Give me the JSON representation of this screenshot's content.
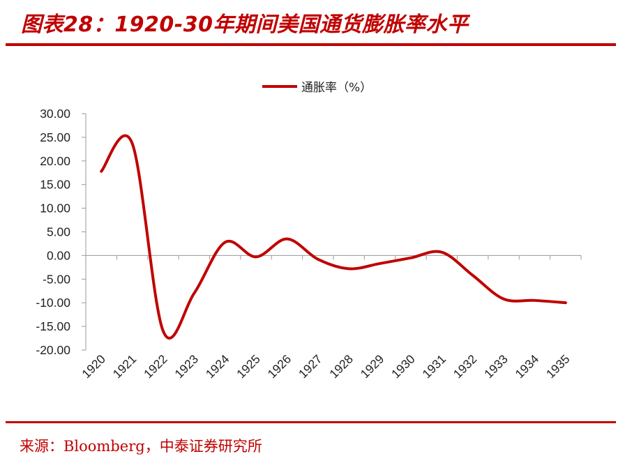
{
  "header": {
    "title": "图表28：1920-30年期间美国通货膨胀率水平"
  },
  "source": {
    "label": "来源：",
    "text": "Bloomberg，中泰证券研究所"
  },
  "colors": {
    "accent": "#c00000",
    "series": "#c00000",
    "axis": "#9a9a9a"
  },
  "chart_data": {
    "type": "line",
    "title": "",
    "xlabel": "",
    "ylabel": "",
    "ylim": [
      -20,
      30
    ],
    "y_ticks": [
      30,
      25,
      20,
      15,
      10,
      5,
      0,
      -5,
      -10,
      -15,
      -20
    ],
    "y_tick_labels": [
      "30.00",
      "25.00",
      "20.00",
      "15.00",
      "10.00",
      "5.00",
      "0.00",
      "-5.00",
      "-10.00",
      "-15.00",
      "-20.00"
    ],
    "categories": [
      "1920",
      "1921",
      "1922",
      "1923",
      "1924",
      "1925",
      "1926",
      "1927",
      "1928",
      "1929",
      "1930",
      "1931",
      "1932",
      "1933",
      "1934",
      "1935"
    ],
    "grid": false,
    "smooth": true,
    "legend": {
      "position": "top-center"
    },
    "series": [
      {
        "name": "通胀率（%）",
        "values": [
          17.8,
          23.7,
          -16.0,
          -8.0,
          2.8,
          -0.3,
          3.5,
          -0.8,
          -2.8,
          -1.7,
          -0.5,
          0.7,
          -4.2,
          -9.2,
          -9.5,
          -10.0
        ]
      }
    ]
  }
}
